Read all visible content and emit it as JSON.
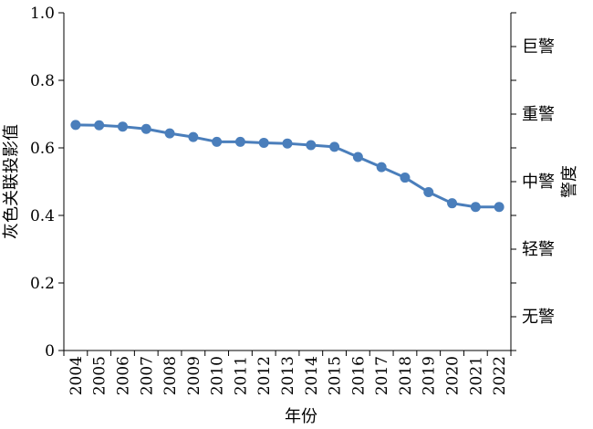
{
  "chart_data": {
    "type": "line",
    "x": [
      "2004",
      "2005",
      "2006",
      "2007",
      "2008",
      "2009",
      "2010",
      "2011",
      "2012",
      "2013",
      "2014",
      "2015",
      "2016",
      "2017",
      "2018",
      "2019",
      "2020",
      "2021",
      "2022"
    ],
    "series": [
      {
        "values": [
          0.668,
          0.667,
          0.663,
          0.656,
          0.643,
          0.632,
          0.618,
          0.618,
          0.615,
          0.613,
          0.608,
          0.603,
          0.573,
          0.543,
          0.512,
          0.469,
          0.436,
          0.425,
          0.425
        ],
        "color": "#4a7ebb"
      }
    ],
    "ylim": [
      0,
      1.0
    ],
    "yticks": [
      "0",
      "0.2",
      "0.4",
      "0.6",
      "0.8",
      "1.0"
    ],
    "xlabel": "年份",
    "ylabel": "灰色关联投影值",
    "y2label": "警度",
    "warning_levels": [
      "无警",
      "轻警",
      "中警",
      "重警",
      "巨警"
    ],
    "grid": false,
    "legend": "none"
  }
}
